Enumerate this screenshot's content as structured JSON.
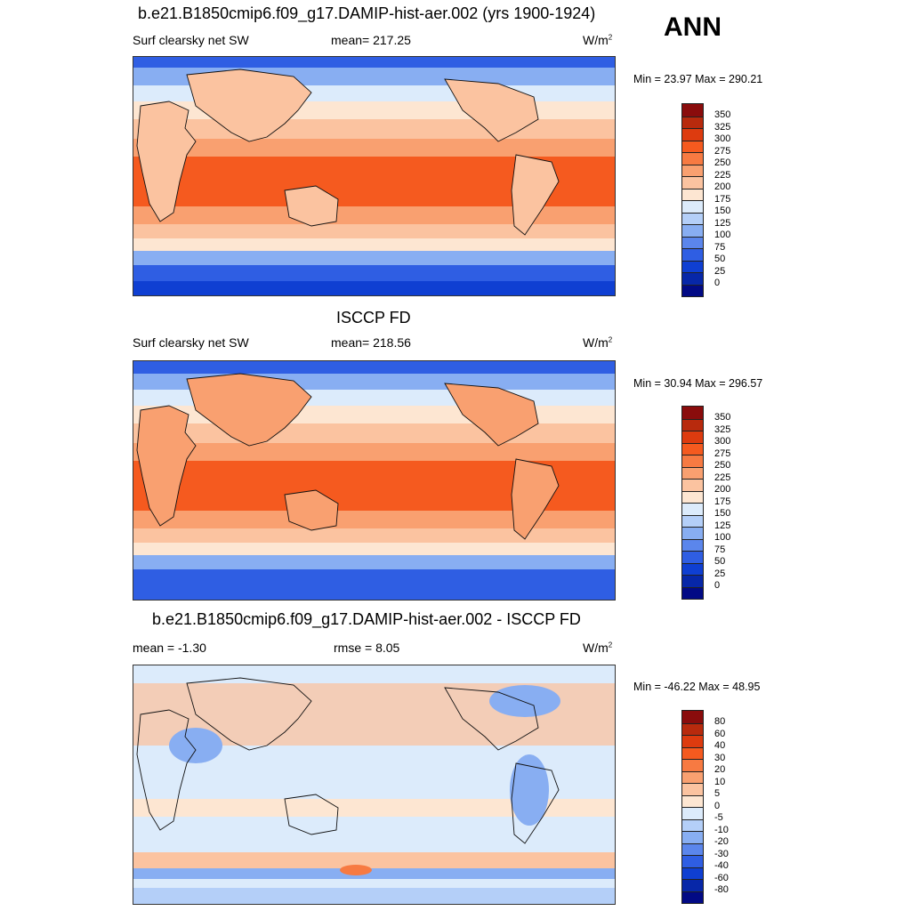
{
  "season": "ANN",
  "panels": [
    {
      "title": "b.e21.B1850cmip6.f09_g17.DAMIP-hist-aer.002 (yrs 1900-1924)",
      "left": "Surf clearsky net SW",
      "center": "mean= 217.25",
      "units": "W/m",
      "units_sup": "2",
      "minmax": "Min =  23.97 Max = 290.21",
      "kind": "field"
    },
    {
      "title": "ISCCP FD",
      "left": "Surf clearsky net SW",
      "center": "mean= 218.56",
      "units": "W/m",
      "units_sup": "2",
      "minmax": "Min =  30.94 Max = 296.57",
      "kind": "field"
    },
    {
      "title": "b.e21.B1850cmip6.f09_g17.DAMIP-hist-aer.002 - ISCCP FD",
      "left": "mean =  -1.30",
      "center": "rmse =   8.05",
      "units": "W/m",
      "units_sup": "2",
      "minmax": "Min = -46.22 Max =  48.95",
      "kind": "diff"
    }
  ],
  "colorbars": {
    "field": {
      "labels": [
        "350",
        "325",
        "300",
        "275",
        "250",
        "225",
        "200",
        "175",
        "150",
        "125",
        "100",
        "75",
        "50",
        "25",
        "0"
      ],
      "colors": [
        "#8a0c0c",
        "#b82a0d",
        "#dd3b0f",
        "#f55a1f",
        "#f77a42",
        "#f9a070",
        "#fbc3a0",
        "#fde6d2",
        "#dcebfb",
        "#b4cff8",
        "#88aef2",
        "#5b86ec",
        "#2f5ee3",
        "#0f3fd2",
        "#0727a8",
        "#020a85"
      ]
    },
    "diff": {
      "labels": [
        "80",
        "60",
        "40",
        "30",
        "20",
        "10",
        "5",
        "0",
        "-5",
        "-10",
        "-20",
        "-30",
        "-40",
        "-60",
        "-80"
      ],
      "colors": [
        "#8a0c0c",
        "#b82a0d",
        "#dd3b0f",
        "#f55a1f",
        "#f77a42",
        "#f9a070",
        "#fbc3a0",
        "#fde6d2",
        "#dcebfb",
        "#b4cff8",
        "#88aef2",
        "#5b86ec",
        "#2f5ee3",
        "#0f3fd2",
        "#0727a8",
        "#020a85"
      ]
    }
  }
}
